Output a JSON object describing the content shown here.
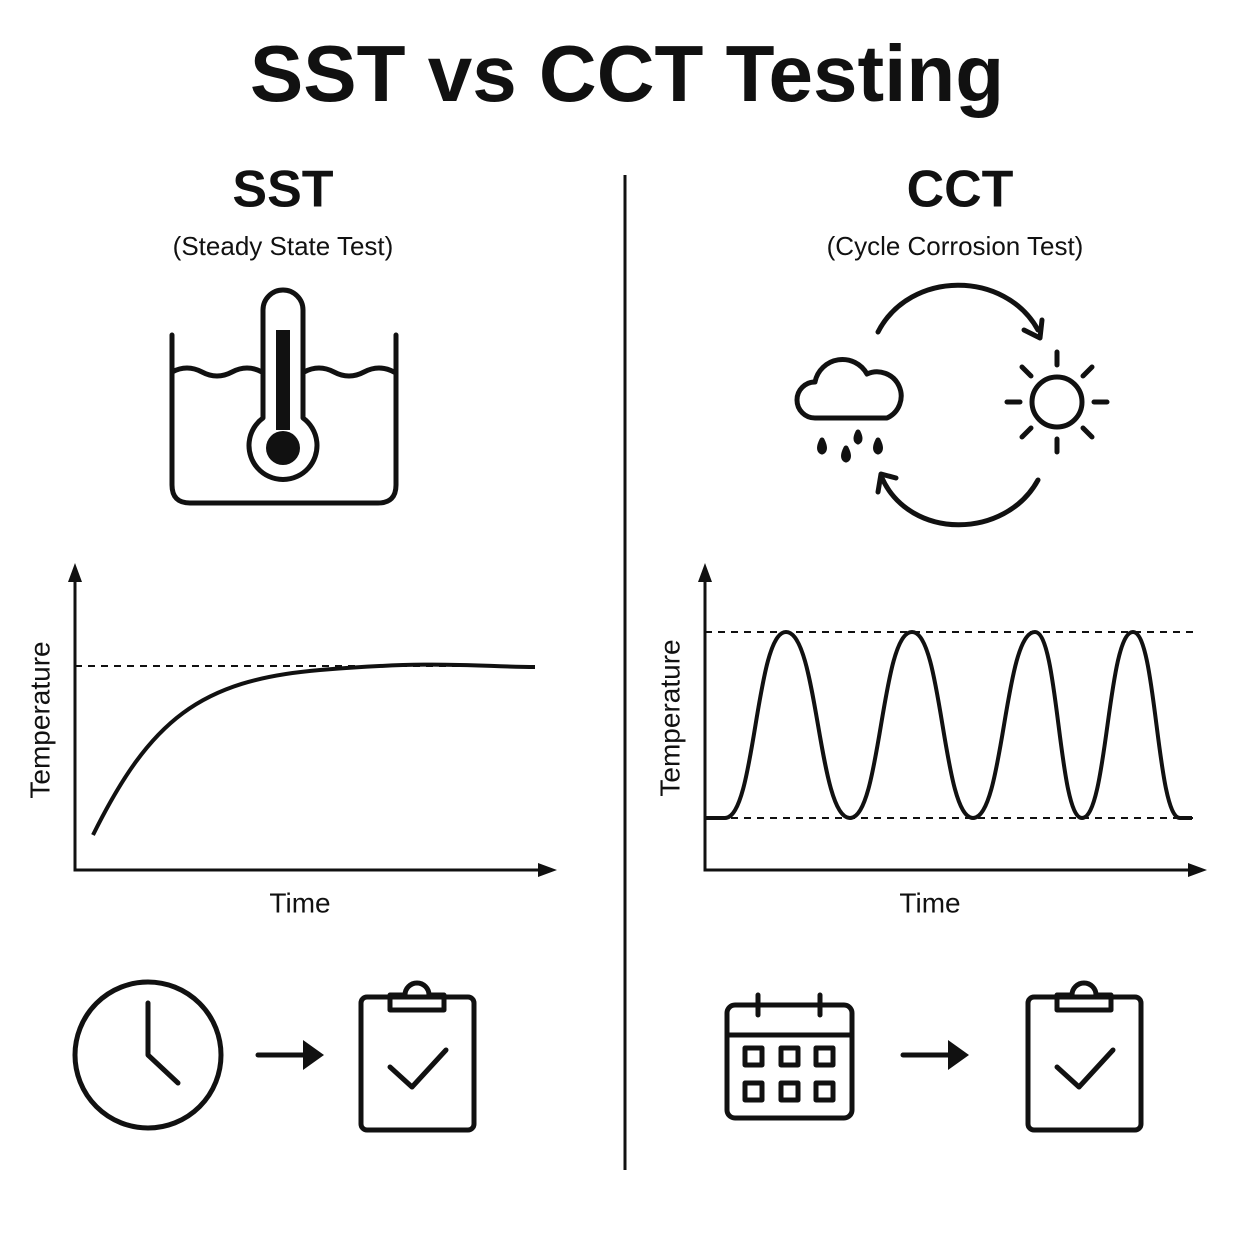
{
  "title": "SST vs CCT Testing",
  "sst": {
    "title": "SST",
    "subtitle": "(Steady State Test)",
    "chart": {
      "y_axis_label": "Temperature",
      "x_axis_label": "Time"
    }
  },
  "cct": {
    "title": "CCT",
    "subtitle": "(Cycle Corrosion Test)",
    "chart": {
      "y_axis_label": "Temperature",
      "x_axis_label": "Time"
    }
  }
}
